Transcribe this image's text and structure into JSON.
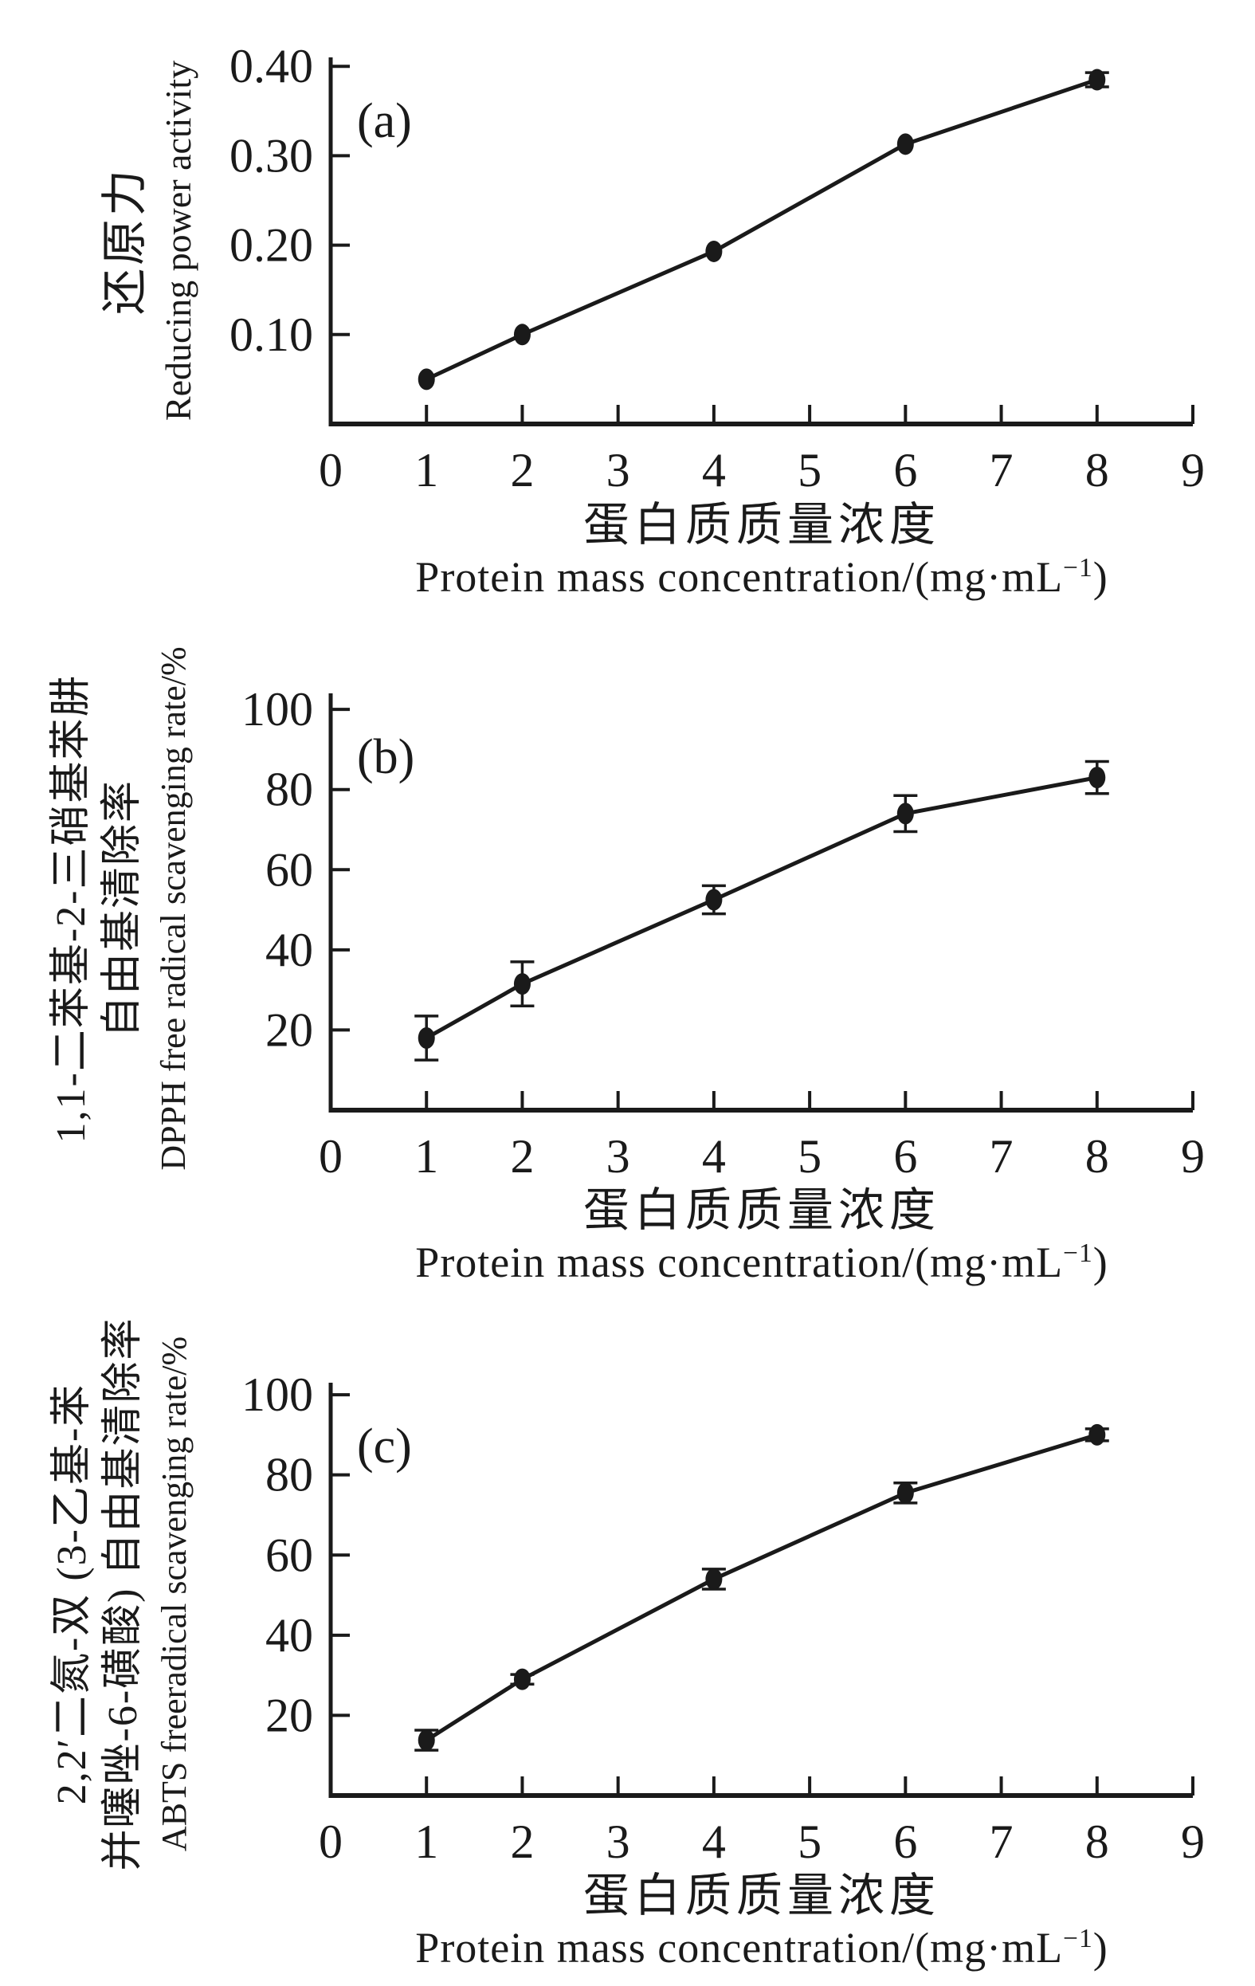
{
  "figure": {
    "background": "#ffffff",
    "ink_color": "#1a1a1a",
    "description_visible_panels": [
      "(a)",
      "(b)",
      "(c)"
    ]
  },
  "chart_data": [
    {
      "panel_letter": "(a)",
      "type": "line",
      "x": [
        1,
        2,
        4,
        6,
        8
      ],
      "y": [
        0.05,
        0.1,
        0.193,
        0.313,
        0.385
      ],
      "yerr": [
        0,
        0,
        0,
        0,
        0.008
      ],
      "xlim": [
        0,
        9
      ],
      "ylim": [
        0,
        0.41
      ],
      "xticks": [
        0,
        1,
        2,
        3,
        4,
        5,
        6,
        7,
        8,
        9
      ],
      "xtick_labels": [
        "0",
        "1",
        "2",
        "3",
        "4",
        "5",
        "6",
        "7",
        "8",
        "9"
      ],
      "yticks": [
        0.1,
        0.2,
        0.3,
        0.4
      ],
      "ytick_labels": [
        "0.10",
        "0.20",
        "0.30",
        "0.40"
      ],
      "ylabel_lines": [
        "还原力",
        "Reducing power activity"
      ],
      "xlabel_zh": "蛋白质质量浓度",
      "xlabel_en": [
        "Protein mass concentration/(mg·mL",
        "−1",
        ")"
      ],
      "legend": "none",
      "grid": false,
      "marker": "filled-circle",
      "line_color": "#1a1a1a"
    },
    {
      "panel_letter": "(b)",
      "type": "line",
      "x": [
        1,
        2,
        4,
        6,
        8
      ],
      "y": [
        18,
        31.5,
        52.5,
        74,
        83
      ],
      "yerr": [
        5.5,
        5.5,
        3.5,
        4.5,
        4
      ],
      "xlim": [
        0,
        9
      ],
      "ylim": [
        0,
        104
      ],
      "xticks": [
        0,
        1,
        2,
        3,
        4,
        5,
        6,
        7,
        8,
        9
      ],
      "xtick_labels": [
        "0",
        "1",
        "2",
        "3",
        "4",
        "5",
        "6",
        "7",
        "8",
        "9"
      ],
      "yticks": [
        20,
        40,
        60,
        80,
        100
      ],
      "ytick_labels": [
        "20",
        "40",
        "60",
        "80",
        "100"
      ],
      "ylabel_lines": [
        "1,1-二苯基-2-三硝基苯肼",
        "自由基清除率",
        "DPPH free radical scavenging rate/%"
      ],
      "xlabel_zh": "蛋白质质量浓度",
      "xlabel_en": [
        "Protein mass concentration/(mg·mL",
        "−1",
        ")"
      ],
      "legend": "none",
      "grid": false,
      "marker": "filled-circle",
      "line_color": "#1a1a1a"
    },
    {
      "panel_letter": "(c)",
      "type": "line",
      "x": [
        1,
        2,
        4,
        6,
        8
      ],
      "y": [
        13.8,
        29,
        54,
        75.5,
        90
      ],
      "yerr": [
        2.5,
        1.2,
        2.5,
        2.5,
        1.5
      ],
      "xlim": [
        0,
        9
      ],
      "ylim": [
        0,
        103
      ],
      "xticks": [
        0,
        1,
        2,
        3,
        4,
        5,
        6,
        7,
        8,
        9
      ],
      "xtick_labels": [
        "0",
        "1",
        "2",
        "3",
        "4",
        "5",
        "6",
        "7",
        "8",
        "9"
      ],
      "yticks": [
        20,
        40,
        60,
        80,
        100
      ],
      "ytick_labels": [
        "20",
        "40",
        "60",
        "80",
        "100"
      ],
      "ylabel_lines": [
        "2,2′二氮-双 (3-乙基-苯",
        "并噻唑-6-磺酸) 自由基清除率",
        "ABTS freeradical scavenging rate/%"
      ],
      "xlabel_zh": "蛋白质质量浓度",
      "xlabel_en": [
        "Protein mass concentration/(mg·mL",
        "−1",
        ")"
      ],
      "legend": "none",
      "grid": false,
      "marker": "filled-circle",
      "line_color": "#1a1a1a"
    }
  ]
}
